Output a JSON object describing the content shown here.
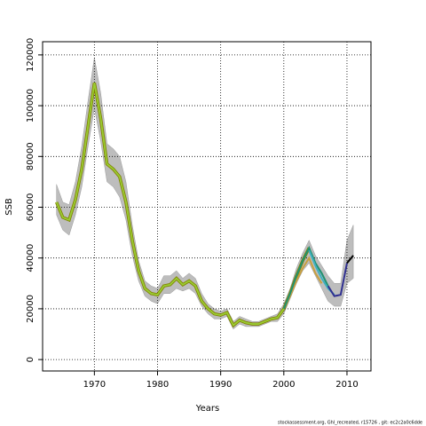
{
  "chart_data": {
    "type": "line",
    "xlabel": "Years",
    "ylabel": "SSB",
    "footer": "stockassessment.org, Ghl_recreated, r15726 , git: ec2c2a0c6dde",
    "xlim": [
      1961.8,
      2013.8
    ],
    "xticks": [
      1970,
      1980,
      1990,
      2000,
      2010
    ],
    "ylim": [
      -4500,
      125200
    ],
    "yticks": [
      0,
      20000,
      40000,
      60000,
      80000,
      100000,
      120000
    ],
    "grid": true,
    "band": {
      "color": "#bdbdbd",
      "x": [
        1964,
        1965,
        1966,
        1967,
        1968,
        1969,
        1970,
        1971,
        1972,
        1973,
        1974,
        1975,
        1976,
        1977,
        1978,
        1979,
        1980,
        1981,
        1982,
        1983,
        1984,
        1985,
        1986,
        1987,
        1988,
        1989,
        1990,
        1991,
        1992,
        1993,
        1994,
        1995,
        1996,
        1997,
        1998,
        1999,
        2000,
        2001,
        2002,
        2003,
        2004,
        2005,
        2006,
        2007,
        2008,
        2009,
        2010,
        2011
      ],
      "upper": [
        69000,
        62000,
        61000,
        70000,
        84000,
        102000,
        119000,
        105000,
        85000,
        83000,
        80000,
        70000,
        53000,
        39000,
        31000,
        29000,
        28000,
        33000,
        33000,
        35000,
        32000,
        34000,
        32000,
        26000,
        22000,
        20000,
        19000,
        20000,
        15000,
        17000,
        16000,
        15000,
        15000,
        16000,
        17000,
        18000,
        22000,
        28000,
        36000,
        42000,
        47000,
        41000,
        37000,
        33000,
        30000,
        30000,
        47000,
        53000
      ],
      "lower": [
        57000,
        51000,
        49000,
        57000,
        68000,
        84000,
        99000,
        86000,
        70000,
        68000,
        64000,
        55000,
        41000,
        31000,
        25000,
        23000,
        22000,
        26000,
        26000,
        28000,
        27000,
        28000,
        26000,
        21000,
        18000,
        16000,
        16000,
        17000,
        12000,
        14000,
        13000,
        13000,
        13000,
        14000,
        15000,
        15000,
        18000,
        24000,
        30000,
        35000,
        38000,
        33000,
        28000,
        23000,
        21000,
        21000,
        30000,
        32000
      ]
    },
    "series": [
      {
        "color": "#9acd32",
        "x": [
          1964,
          1965,
          1966,
          1967,
          1968,
          1969,
          1970,
          1971,
          1972,
          1973,
          1974,
          1975,
          1976,
          1977,
          1978,
          1979,
          1980,
          1981,
          1982,
          1983,
          1984,
          1985,
          1986,
          1987,
          1988,
          1989,
          1990,
          1991,
          1992,
          1993,
          1994,
          1995,
          1996,
          1997,
          1998,
          1999,
          2000,
          2001,
          2002,
          2003,
          2004
        ],
        "values": [
          62000,
          56000,
          55000,
          63000,
          75000,
          92000,
          109000,
          95000,
          77000,
          75000,
          72000,
          62000,
          47000,
          35000,
          28000,
          26000,
          25500,
          29000,
          29500,
          32000,
          29500,
          31000,
          29000,
          23000,
          20000,
          18000,
          17500,
          18500,
          13500,
          15500,
          14500,
          14000,
          14000,
          15000,
          16000,
          16500,
          20000,
          26000,
          33000,
          39000,
          44000
        ]
      },
      {
        "color": "#c8a040",
        "x": [
          2000,
          2001,
          2002,
          2003,
          2004,
          2005,
          2006
        ],
        "values": [
          20000,
          25000,
          31000,
          36000,
          40000,
          34000,
          30000
        ]
      },
      {
        "color": "#209070",
        "x": [
          2000,
          2001,
          2002,
          2003,
          2004,
          2005,
          2006,
          2007
        ],
        "values": [
          20000,
          26000,
          33000,
          39000,
          44000,
          38000,
          34000,
          29000
        ]
      },
      {
        "color": "#40b0c0",
        "x": [
          2004,
          2005,
          2006,
          2007,
          2008
        ],
        "values": [
          43000,
          37000,
          32000,
          28000,
          25500
        ]
      },
      {
        "color": "#303090",
        "x": [
          2007,
          2008,
          2009,
          2010
        ],
        "values": [
          29000,
          25000,
          25500,
          38000
        ]
      },
      {
        "color": "#000000",
        "x": [
          2010,
          2011
        ],
        "values": [
          38000,
          41000
        ]
      }
    ]
  }
}
